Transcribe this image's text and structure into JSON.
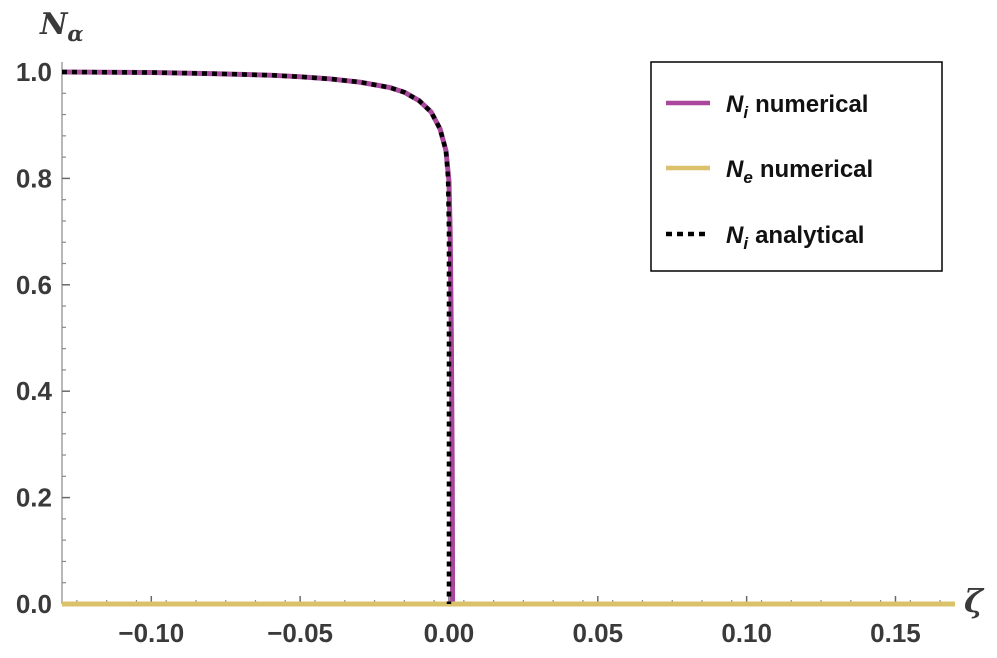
{
  "chart_data": {
    "type": "line",
    "xlabel": "ζ",
    "ylabel_main": "N",
    "ylabel_sub": "α",
    "xlim": [
      -0.13,
      0.17
    ],
    "ylim": [
      0,
      1.0
    ],
    "x_ticks": [
      -0.1,
      -0.05,
      0.0,
      0.05,
      0.1,
      0.15
    ],
    "x_tick_labels": [
      "−0.10",
      "−0.05",
      "0.00",
      "0.05",
      "0.10",
      "0.15"
    ],
    "y_ticks": [
      0.0,
      0.2,
      0.4,
      0.6,
      0.8,
      1.0
    ],
    "y_tick_labels": [
      "0.0",
      "0.2",
      "0.4",
      "0.6",
      "0.8",
      "1.0"
    ],
    "legend_position": "top-right",
    "series": [
      {
        "name": "numerical",
        "symbol": "N",
        "subscript": "i",
        "color": "#a9479d",
        "style": "solid",
        "x": [
          -0.13,
          -0.1,
          -0.08,
          -0.06,
          -0.05,
          -0.04,
          -0.03,
          -0.02,
          -0.015,
          -0.01,
          -0.006,
          -0.003,
          -0.001,
          0.0,
          0.0004,
          0.0008,
          0.0011,
          0.0012,
          0.0012,
          0.17
        ],
        "y": [
          1.0,
          0.999,
          0.997,
          0.994,
          0.991,
          0.987,
          0.981,
          0.971,
          0.962,
          0.946,
          0.925,
          0.893,
          0.852,
          0.795,
          0.7,
          0.5,
          0.25,
          0.05,
          0.0,
          0.0
        ]
      },
      {
        "name": "numerical",
        "symbol": "N",
        "subscript": "e",
        "color": "#d9c26a",
        "style": "solid",
        "x": [
          -0.13,
          0.17
        ],
        "y": [
          0.0,
          0.0
        ]
      },
      {
        "name": "analytical",
        "symbol": "N",
        "subscript": "i",
        "color": "#000000",
        "style": "dotted",
        "x": [
          -0.13,
          -0.1,
          -0.08,
          -0.06,
          -0.05,
          -0.04,
          -0.03,
          -0.02,
          -0.015,
          -0.01,
          -0.006,
          -0.003,
          -0.001,
          -0.0003,
          0.0,
          0.0,
          0.0
        ],
        "y": [
          1.0,
          0.999,
          0.997,
          0.994,
          0.991,
          0.987,
          0.981,
          0.971,
          0.962,
          0.946,
          0.925,
          0.893,
          0.852,
          0.8,
          0.7,
          0.3,
          0.0
        ]
      }
    ]
  }
}
